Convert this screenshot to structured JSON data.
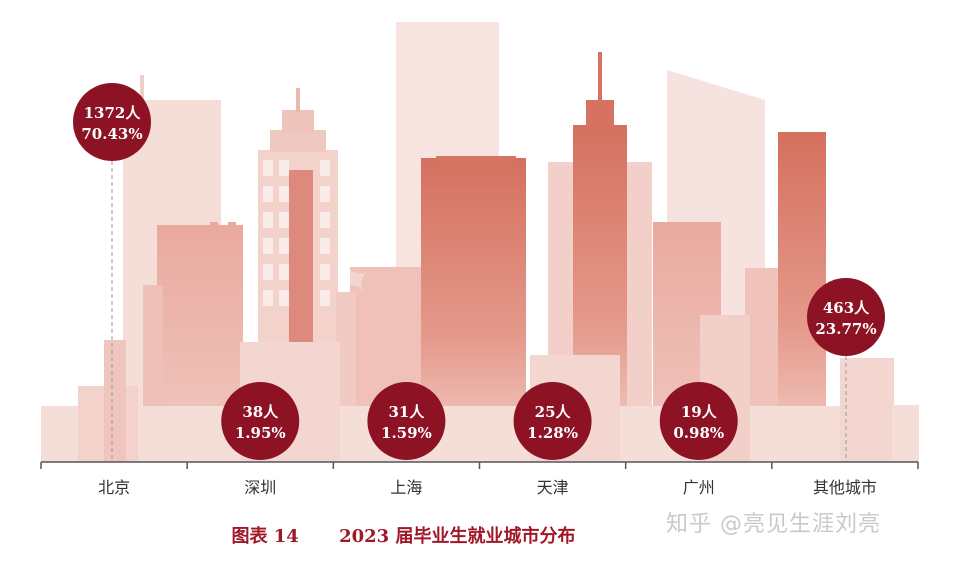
{
  "chart_data": {
    "type": "bar",
    "categories": [
      "北京",
      "深圳",
      "上海",
      "天津",
      "广州",
      "其他城市"
    ],
    "series": [
      {
        "values": [
          1372,
          38,
          31,
          25,
          19,
          463
        ],
        "labels": [
          "1372人",
          "38人",
          "31人",
          "25人",
          "19人",
          "463人"
        ],
        "percents": [
          "70.43%",
          "1.95%",
          "1.59%",
          "1.28%",
          "0.98%",
          "23.77%"
        ]
      }
    ],
    "title": "2023 届毕业生就业城市分布",
    "figure_number": "图表 14",
    "colors": {
      "bubble": "#8c1224",
      "building_light": "#f3d6d1",
      "building_dark": "#d36c5e",
      "axis": "#555555",
      "caption": "#a01828"
    }
  },
  "watermark": "知乎 @亮见生涯刘亮"
}
